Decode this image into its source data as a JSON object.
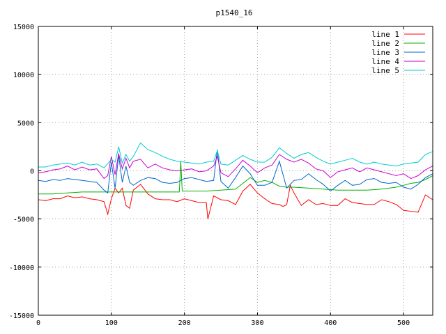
{
  "chart_data": {
    "type": "line",
    "title": "p1540_16",
    "xlabel": "",
    "ylabel": "",
    "xlim": [
      0,
      540
    ],
    "ylim": [
      -15000,
      15000
    ],
    "x_ticks": [
      "0",
      "100",
      "200",
      "300",
      "400",
      "500"
    ],
    "y_ticks": [
      "-15000",
      "-10000",
      "-5000",
      "0",
      "5000",
      "10000",
      "15000"
    ],
    "grid": true,
    "legend_position": "top-right",
    "series": [
      {
        "name": "line 1",
        "color": "#ff0000",
        "x": [
          0,
          10,
          20,
          30,
          40,
          50,
          60,
          70,
          80,
          90,
          95,
          100,
          105,
          110,
          115,
          120,
          125,
          130,
          140,
          150,
          160,
          170,
          180,
          190,
          200,
          210,
          220,
          230,
          232,
          240,
          250,
          260,
          270,
          280,
          290,
          300,
          310,
          320,
          330,
          335,
          340,
          345,
          350,
          360,
          370,
          380,
          390,
          400,
          410,
          420,
          430,
          440,
          450,
          460,
          470,
          480,
          490,
          500,
          510,
          520,
          530,
          540
        ],
        "y": [
          -3000,
          -3100,
          -2900,
          -2900,
          -2600,
          -2800,
          -2700,
          -2900,
          -3000,
          -3200,
          -4500,
          -2900,
          -1800,
          -2300,
          -1800,
          -3600,
          -3900,
          -2000,
          -1400,
          -2400,
          -2900,
          -3000,
          -3000,
          -3200,
          -2900,
          -3100,
          -3300,
          -3300,
          -5000,
          -2600,
          -3000,
          -3100,
          -3500,
          -2100,
          -1400,
          -2300,
          -2900,
          -3400,
          -3500,
          -3700,
          -3500,
          -1500,
          -2300,
          -3600,
          -3000,
          -3500,
          -3400,
          -3600,
          -3600,
          -2900,
          -3300,
          -3400,
          -3500,
          -3500,
          -3000,
          -3200,
          -3500,
          -4100,
          -4200,
          -4300,
          -2500,
          -3000
        ]
      },
      {
        "name": "line 2",
        "color": "#00b000",
        "x": [
          0,
          20,
          40,
          60,
          80,
          100,
          120,
          140,
          160,
          180,
          193,
          195,
          197,
          210,
          230,
          250,
          270,
          280,
          290,
          300,
          310,
          320,
          330,
          340,
          350,
          370,
          390,
          410,
          430,
          450,
          470,
          490,
          500,
          510,
          520,
          530,
          540
        ],
        "y": [
          -2400,
          -2400,
          -2300,
          -2200,
          -2200,
          -2200,
          -2200,
          -2200,
          -2200,
          -2200,
          -2200,
          1000,
          -2100,
          -2100,
          -2100,
          -2000,
          -1900,
          -1300,
          -700,
          -1200,
          -1000,
          -1200,
          -1600,
          -1700,
          -1700,
          -1800,
          -1900,
          -2000,
          -2000,
          -2000,
          -1900,
          -1700,
          -1500,
          -1300,
          -1200,
          -900,
          -500
        ]
      },
      {
        "name": "line 3",
        "color": "#0066cc",
        "x": [
          0,
          10,
          20,
          30,
          40,
          50,
          60,
          70,
          80,
          90,
          95,
          100,
          105,
          110,
          115,
          120,
          125,
          130,
          140,
          150,
          160,
          170,
          180,
          190,
          200,
          210,
          220,
          230,
          240,
          245,
          250,
          260,
          270,
          280,
          290,
          300,
          310,
          320,
          330,
          340,
          350,
          360,
          370,
          380,
          390,
          400,
          410,
          420,
          430,
          440,
          450,
          460,
          470,
          480,
          490,
          500,
          510,
          520,
          530,
          540
        ],
        "y": [
          -1000,
          -1100,
          -900,
          -1000,
          -800,
          -900,
          -1000,
          -1100,
          -1200,
          -2000,
          -2300,
          900,
          -1800,
          1600,
          -1200,
          500,
          -1200,
          -1500,
          -1000,
          -700,
          -800,
          -1200,
          -1300,
          -1200,
          -800,
          -700,
          -900,
          -1100,
          -1000,
          2200,
          -1100,
          -1800,
          -700,
          500,
          -300,
          -1500,
          -1500,
          -1200,
          1000,
          -1800,
          -1000,
          -900,
          -300,
          -900,
          -1400,
          -2100,
          -1500,
          -1000,
          -1500,
          -1400,
          -900,
          -800,
          -1200,
          -1300,
          -1200,
          -1700,
          -1900,
          -1400,
          -700,
          -300
        ]
      },
      {
        "name": "line 4",
        "color": "#cc00cc",
        "x": [
          0,
          10,
          20,
          30,
          40,
          50,
          60,
          70,
          80,
          90,
          95,
          100,
          105,
          110,
          115,
          120,
          125,
          130,
          140,
          150,
          160,
          170,
          180,
          190,
          200,
          210,
          220,
          230,
          240,
          245,
          250,
          260,
          270,
          280,
          290,
          300,
          310,
          320,
          330,
          340,
          350,
          360,
          370,
          380,
          390,
          400,
          410,
          420,
          430,
          440,
          450,
          460,
          470,
          480,
          490,
          500,
          510,
          520,
          530,
          540
        ],
        "y": [
          -200,
          -100,
          100,
          200,
          500,
          100,
          400,
          100,
          200,
          -800,
          -500,
          1500,
          -400,
          1800,
          200,
          1300,
          300,
          1000,
          1200,
          300,
          700,
          300,
          100,
          0,
          100,
          200,
          -100,
          0,
          500,
          1500,
          -200,
          -600,
          200,
          1100,
          500,
          -200,
          300,
          600,
          1700,
          1200,
          900,
          1200,
          800,
          200,
          0,
          -700,
          -100,
          100,
          300,
          -100,
          300,
          100,
          -100,
          -300,
          -500,
          -300,
          -800,
          -500,
          100,
          500
        ]
      },
      {
        "name": "line 5",
        "color": "#00cccc",
        "x": [
          0,
          10,
          20,
          30,
          40,
          50,
          60,
          70,
          80,
          90,
          100,
          105,
          110,
          115,
          120,
          125,
          130,
          140,
          150,
          160,
          170,
          180,
          190,
          200,
          210,
          220,
          230,
          240,
          245,
          250,
          260,
          270,
          280,
          290,
          300,
          310,
          320,
          330,
          340,
          350,
          360,
          370,
          380,
          390,
          400,
          410,
          420,
          430,
          440,
          450,
          460,
          470,
          480,
          490,
          500,
          510,
          520,
          530,
          540
        ],
        "y": [
          400,
          400,
          600,
          700,
          800,
          600,
          900,
          600,
          700,
          300,
          1200,
          900,
          2500,
          800,
          1700,
          1000,
          1500,
          2900,
          2200,
          1900,
          1500,
          1200,
          1000,
          900,
          800,
          700,
          900,
          1000,
          2100,
          700,
          600,
          1100,
          1600,
          1200,
          900,
          900,
          1400,
          2400,
          1800,
          1300,
          1700,
          1900,
          1400,
          1000,
          700,
          900,
          1100,
          1300,
          900,
          700,
          900,
          700,
          600,
          500,
          700,
          800,
          900,
          1700,
          2000
        ]
      }
    ]
  }
}
